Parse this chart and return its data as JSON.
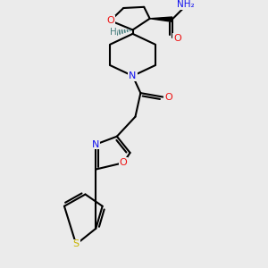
{
  "bg_color": "#ebebeb",
  "atom_colors": {
    "C": "#000000",
    "N": "#1010ee",
    "O": "#ee1010",
    "S": "#c8b400",
    "H": "#4a8080"
  },
  "bond_color": "#000000",
  "bond_width": 1.5
}
